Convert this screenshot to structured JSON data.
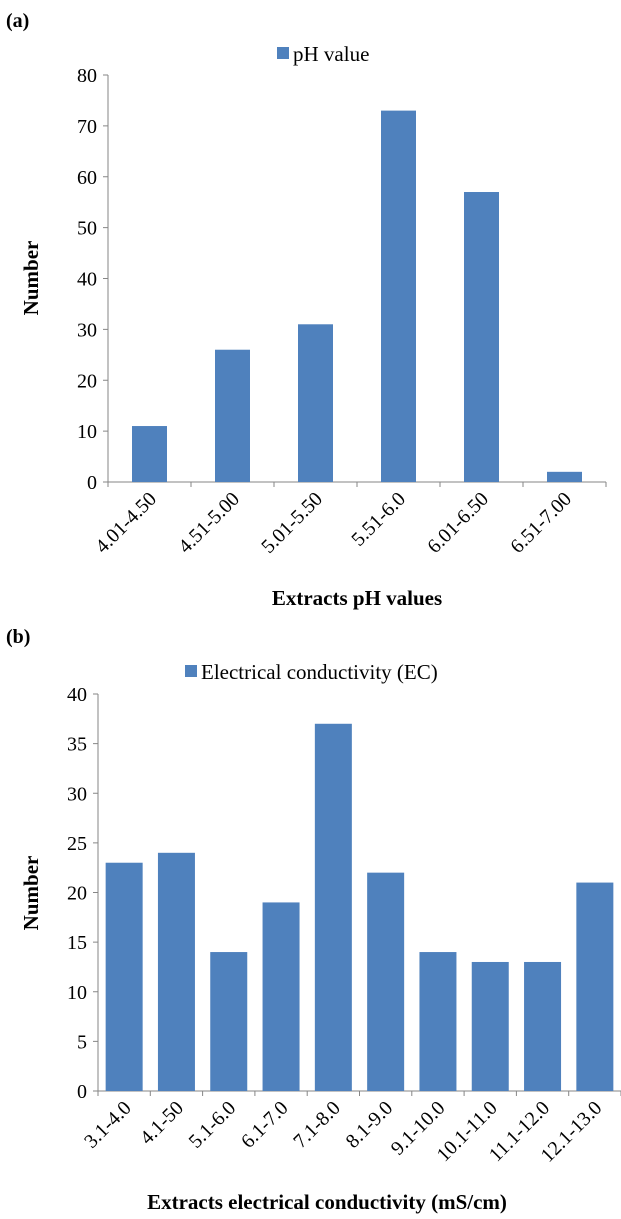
{
  "chart_data": [
    {
      "panel": "(a)",
      "type": "bar",
      "categories": [
        "4.01-4.50",
        "4.51-5.00",
        "5.01-5.50",
        "5.51-6.0",
        "6.01-6.50",
        "6.51-7.00"
      ],
      "series": [
        {
          "name": "pH value",
          "values": [
            11,
            26,
            31,
            73,
            57,
            2
          ]
        }
      ],
      "xlabel": "Extracts pH values",
      "ylabel": "Number",
      "ylim": [
        0,
        80
      ],
      "yticks": [
        0,
        10,
        20,
        30,
        40,
        50,
        60,
        70,
        80
      ],
      "legend": "top",
      "grid": false,
      "bar_color": "#4f81bd"
    },
    {
      "panel": "(b)",
      "type": "bar",
      "categories": [
        "3.1-4.0",
        "4.1-50",
        "5.1-6.0",
        "6.1-7.0",
        "7.1-8.0",
        "8.1-9.0",
        "9.1-10.0",
        "10.1-11.0",
        "11.1-12.0",
        "12.1-13.0"
      ],
      "series": [
        {
          "name": "Electrical conductivity (EC)",
          "values": [
            23,
            24,
            14,
            19,
            37,
            22,
            14,
            13,
            13,
            21
          ]
        }
      ],
      "xlabel": "Extracts electrical conductivity (mS/cm)",
      "ylabel": "Number",
      "ylim": [
        0,
        40
      ],
      "yticks": [
        0,
        5,
        10,
        15,
        20,
        25,
        30,
        35,
        40
      ],
      "legend": "top",
      "grid": false,
      "bar_color": "#4f81bd"
    }
  ]
}
